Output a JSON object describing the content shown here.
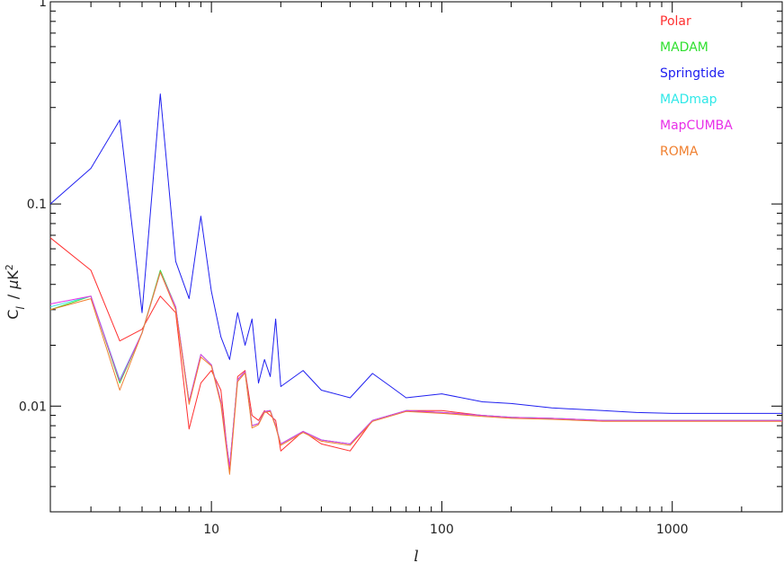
{
  "chart_data": {
    "type": "line",
    "xlabel": "l",
    "ylabel": "C_l / μK²",
    "ylabel_parts": {
      "c": "C",
      "sub": "l",
      "slash": "/",
      "mu": "μ",
      "k": "K",
      "sup": "2"
    },
    "xscale": "log",
    "yscale": "log",
    "xlim": [
      2,
      3000
    ],
    "ylim": [
      0.003,
      1
    ],
    "x_ticks": [
      {
        "value": 10,
        "label": "10"
      },
      {
        "value": 100,
        "label": "100"
      },
      {
        "value": 1000,
        "label": "1000"
      }
    ],
    "y_ticks": [
      {
        "value": 0.01,
        "label": "0.01"
      },
      {
        "value": 0.1,
        "label": "0.1"
      },
      {
        "value": 1,
        "label": "1"
      }
    ],
    "legend_position": "top-right",
    "grid": false,
    "series": [
      {
        "name": "Polar",
        "color": "#ff3030",
        "x": [
          2,
          3,
          4,
          5,
          6,
          7,
          8,
          9,
          10,
          11,
          12,
          13,
          14,
          15,
          16,
          17,
          18,
          19,
          20,
          25,
          30,
          40,
          50,
          70,
          100,
          150,
          200,
          300,
          500,
          700,
          1000,
          1500,
          2000,
          3000
        ],
        "y": [
          0.068,
          0.047,
          0.021,
          0.024,
          0.035,
          0.029,
          0.0077,
          0.013,
          0.015,
          0.012,
          0.0047,
          0.014,
          0.015,
          0.009,
          0.0085,
          0.0095,
          0.009,
          0.0085,
          0.006,
          0.0075,
          0.0065,
          0.006,
          0.0085,
          0.0095,
          0.0095,
          0.009,
          0.0088,
          0.0087,
          0.0085,
          0.0085,
          0.0085,
          0.0085,
          0.0085,
          0.0085
        ]
      },
      {
        "name": "MADAM",
        "color": "#30e030",
        "x": [
          2,
          3,
          4,
          5,
          6,
          7,
          8,
          9,
          10,
          11,
          12,
          13,
          14,
          15,
          16,
          17,
          18,
          19,
          20,
          25,
          30,
          40,
          50,
          70,
          100,
          150,
          200,
          300,
          500,
          700,
          1000,
          1500,
          2000,
          3000
        ],
        "y": [
          0.03,
          0.035,
          0.013,
          0.023,
          0.047,
          0.031,
          0.0105,
          0.018,
          0.016,
          0.0105,
          0.005,
          0.0135,
          0.0148,
          0.008,
          0.0082,
          0.0094,
          0.0095,
          0.008,
          0.0065,
          0.0075,
          0.0068,
          0.0065,
          0.0085,
          0.0095,
          0.0093,
          0.009,
          0.0088,
          0.0087,
          0.0085,
          0.0085,
          0.0085,
          0.0085,
          0.0085,
          0.0085
        ]
      },
      {
        "name": "Springtide",
        "color": "#2020f0",
        "x": [
          2,
          3,
          4,
          5,
          6,
          7,
          8,
          9,
          10,
          11,
          12,
          13,
          14,
          15,
          16,
          17,
          18,
          19,
          20,
          25,
          30,
          40,
          50,
          60,
          70,
          100,
          150,
          200,
          300,
          500,
          700,
          1000,
          1500,
          2000,
          3000
        ],
        "y": [
          0.1,
          0.15,
          0.26,
          0.029,
          0.35,
          0.052,
          0.034,
          0.087,
          0.037,
          0.022,
          0.017,
          0.029,
          0.02,
          0.027,
          0.013,
          0.017,
          0.014,
          0.027,
          0.0125,
          0.015,
          0.012,
          0.011,
          0.0145,
          0.0125,
          0.011,
          0.0115,
          0.0105,
          0.0103,
          0.0098,
          0.0095,
          0.0093,
          0.0092,
          0.0092,
          0.0092,
          0.0092
        ]
      },
      {
        "name": "MADmap",
        "color": "#30e8e8",
        "x": [
          2,
          3,
          4,
          5,
          6,
          7,
          8,
          9,
          10,
          11,
          12,
          13,
          14,
          15,
          16,
          17,
          18,
          19,
          20,
          25,
          30,
          40,
          50,
          70,
          100,
          150,
          200,
          300,
          500,
          700,
          1000,
          1500,
          2000,
          3000
        ],
        "y": [
          0.031,
          0.035,
          0.0135,
          0.023,
          0.046,
          0.031,
          0.0105,
          0.018,
          0.016,
          0.0105,
          0.005,
          0.0135,
          0.0148,
          0.008,
          0.0082,
          0.0094,
          0.0095,
          0.008,
          0.0065,
          0.0075,
          0.0068,
          0.0065,
          0.0085,
          0.0095,
          0.0093,
          0.009,
          0.0088,
          0.0087,
          0.0085,
          0.0085,
          0.0085,
          0.0085,
          0.0085,
          0.0085
        ]
      },
      {
        "name": "MapCUMBA",
        "color": "#e830e8",
        "x": [
          2,
          3,
          4,
          5,
          6,
          7,
          8,
          9,
          10,
          11,
          12,
          13,
          14,
          15,
          16,
          17,
          18,
          19,
          20,
          25,
          30,
          40,
          50,
          70,
          100,
          150,
          200,
          300,
          500,
          700,
          1000,
          1500,
          2000,
          3000
        ],
        "y": [
          0.032,
          0.035,
          0.0133,
          0.023,
          0.046,
          0.031,
          0.0105,
          0.018,
          0.016,
          0.0105,
          0.005,
          0.0135,
          0.0148,
          0.008,
          0.0082,
          0.0094,
          0.0095,
          0.008,
          0.0065,
          0.0075,
          0.0068,
          0.0065,
          0.0085,
          0.0095,
          0.0093,
          0.009,
          0.0088,
          0.0087,
          0.0085,
          0.0085,
          0.0085,
          0.0085,
          0.0085,
          0.0085
        ]
      },
      {
        "name": "ROMA",
        "color": "#f08030",
        "x": [
          2,
          3,
          4,
          5,
          6,
          7,
          8,
          9,
          10,
          11,
          12,
          13,
          14,
          15,
          16,
          17,
          18,
          19,
          20,
          25,
          30,
          40,
          50,
          70,
          100,
          150,
          200,
          300,
          500,
          700,
          1000,
          1500,
          2000,
          3000
        ],
        "y": [
          0.03,
          0.034,
          0.012,
          0.023,
          0.046,
          0.03,
          0.0102,
          0.0175,
          0.0158,
          0.0102,
          0.0046,
          0.0132,
          0.0146,
          0.0078,
          0.0081,
          0.0093,
          0.0094,
          0.0079,
          0.0064,
          0.0074,
          0.0067,
          0.0064,
          0.0084,
          0.0094,
          0.0092,
          0.0089,
          0.0087,
          0.0086,
          0.0084,
          0.0084,
          0.0084,
          0.0084,
          0.0084,
          0.0084
        ]
      }
    ]
  }
}
